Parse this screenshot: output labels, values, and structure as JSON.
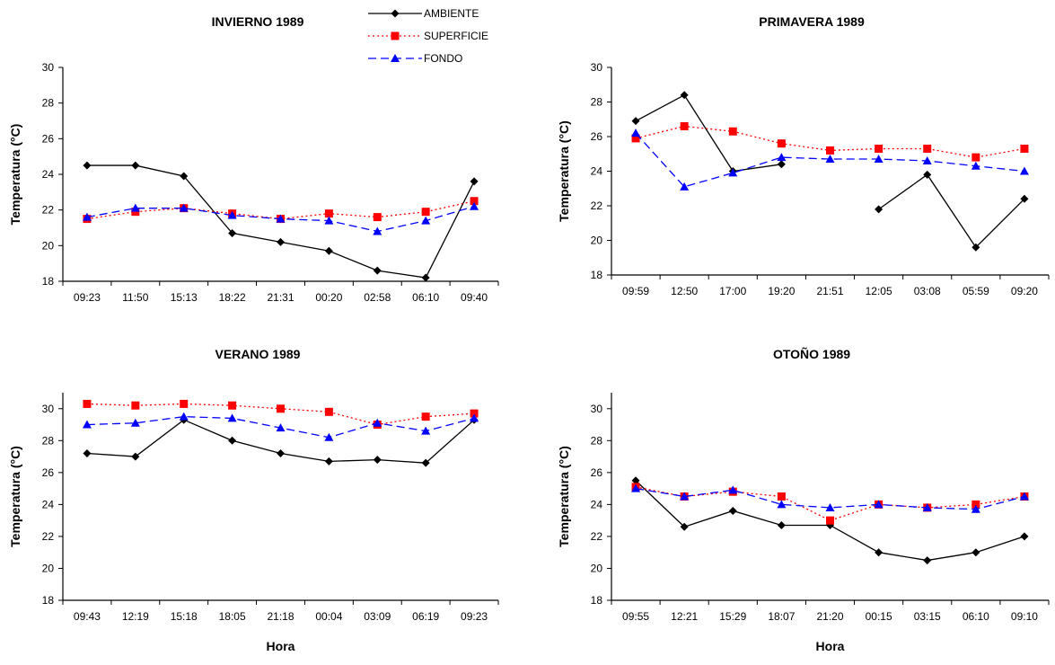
{
  "legend": {
    "items": [
      {
        "label": "AMBIENTE",
        "color": "#000000",
        "marker": "diamond",
        "dash": "solid"
      },
      {
        "label": "SUPERFICIE",
        "color": "#ff0000",
        "marker": "square",
        "dash": "dotted"
      },
      {
        "label": "FONDO",
        "color": "#0000ff",
        "marker": "triangle",
        "dash": "dashed"
      }
    ]
  },
  "chart_data": [
    {
      "type": "line",
      "title": "INVIERNO 1989",
      "xlabel": "",
      "ylabel": "Temperatura (°C)",
      "ylim": [
        18,
        30
      ],
      "yticks": [
        18,
        20,
        22,
        24,
        26,
        28,
        30
      ],
      "categories": [
        "09:23",
        "11:50",
        "15:13",
        "18:22",
        "21:31",
        "00:20",
        "02:58",
        "06:10",
        "09:40"
      ],
      "series": [
        {
          "name": "AMBIENTE",
          "values": [
            24.5,
            24.5,
            23.9,
            20.7,
            20.2,
            19.7,
            18.6,
            18.2,
            23.6
          ]
        },
        {
          "name": "SUPERFICIE",
          "values": [
            21.5,
            21.9,
            22.1,
            21.8,
            21.5,
            21.8,
            21.6,
            21.9,
            22.5
          ]
        },
        {
          "name": "FONDO",
          "values": [
            21.6,
            22.1,
            22.1,
            21.7,
            21.5,
            21.4,
            20.8,
            21.4,
            22.2
          ]
        }
      ]
    },
    {
      "type": "line",
      "title": "PRIMAVERA 1989",
      "xlabel": "",
      "ylabel": "Temperatura (°C)",
      "ylim": [
        18,
        30
      ],
      "yticks": [
        18,
        20,
        22,
        24,
        26,
        28,
        30
      ],
      "categories": [
        "09:59",
        "12:50",
        "17:00",
        "19:20",
        "21:51",
        "12:05",
        "03:08",
        "05:59",
        "09:20"
      ],
      "series": [
        {
          "name": "AMBIENTE",
          "values": [
            26.9,
            28.4,
            24.0,
            24.4,
            null,
            21.8,
            23.8,
            19.6,
            22.4
          ]
        },
        {
          "name": "SUPERFICIE",
          "values": [
            25.9,
            26.6,
            26.3,
            25.6,
            25.2,
            25.3,
            25.3,
            24.8,
            25.3
          ]
        },
        {
          "name": "FONDO",
          "values": [
            26.2,
            23.1,
            23.9,
            24.8,
            24.7,
            24.7,
            24.6,
            24.3,
            24.0
          ]
        }
      ]
    },
    {
      "type": "line",
      "title": "VERANO 1989",
      "xlabel": "Hora",
      "ylabel": "Temperatura (°C)",
      "ylim": [
        18,
        31
      ],
      "yticks": [
        18,
        20,
        22,
        24,
        26,
        28,
        30
      ],
      "categories": [
        "09:43",
        "12:19",
        "15:18",
        "18:05",
        "21:18",
        "00:04",
        "03:09",
        "06:19",
        "09:23"
      ],
      "series": [
        {
          "name": "AMBIENTE",
          "values": [
            27.2,
            27.0,
            29.3,
            28.0,
            27.2,
            26.7,
            26.8,
            26.6,
            29.3
          ]
        },
        {
          "name": "SUPERFICIE",
          "values": [
            30.3,
            30.2,
            30.3,
            30.2,
            30.0,
            29.8,
            29.0,
            29.5,
            29.7
          ]
        },
        {
          "name": "FONDO",
          "values": [
            29.0,
            29.1,
            29.5,
            29.4,
            28.8,
            28.2,
            29.1,
            28.6,
            29.4
          ]
        }
      ]
    },
    {
      "type": "line",
      "title": "OTOÑO 1989",
      "xlabel": "Hora",
      "ylabel": "Temperatura (°C)",
      "ylim": [
        18,
        31
      ],
      "yticks": [
        18,
        20,
        22,
        24,
        26,
        28,
        30
      ],
      "categories": [
        "09:55",
        "12:21",
        "15:29",
        "18:07",
        "21:20",
        "00:15",
        "03:15",
        "06:10",
        "09:10"
      ],
      "series": [
        {
          "name": "AMBIENTE",
          "values": [
            25.5,
            22.6,
            23.6,
            22.7,
            22.7,
            21.0,
            20.5,
            21.0,
            22.0
          ]
        },
        {
          "name": "SUPERFICIE",
          "values": [
            25.1,
            24.5,
            24.8,
            24.5,
            23.0,
            24.0,
            23.8,
            24.0,
            24.5
          ]
        },
        {
          "name": "FONDO",
          "values": [
            25.0,
            24.5,
            24.9,
            24.0,
            23.8,
            24.0,
            23.8,
            23.7,
            24.5
          ]
        }
      ]
    }
  ]
}
